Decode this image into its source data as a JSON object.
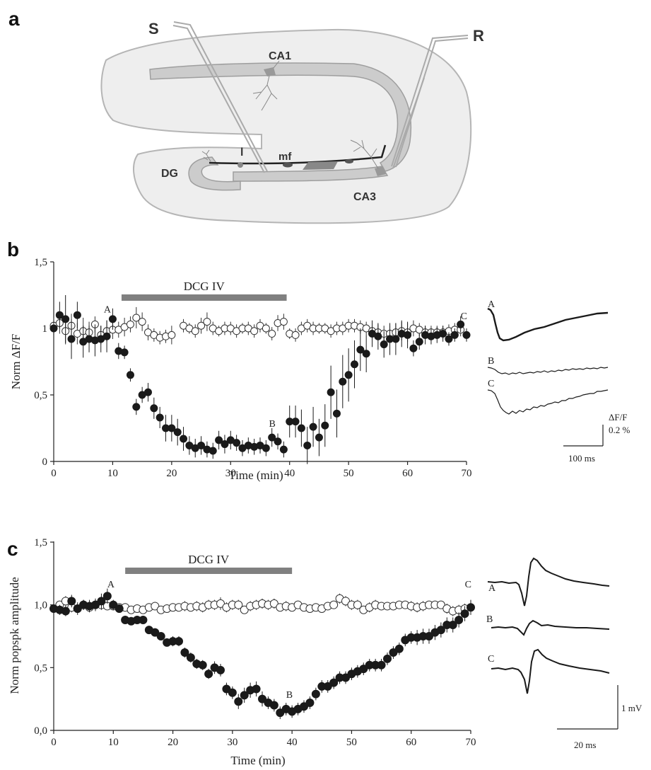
{
  "panel_labels": {
    "a": "a",
    "b": "b",
    "c": "c"
  },
  "schematic": {
    "stim_label": "S",
    "rec_label": "R",
    "ca1_label": "CA1",
    "ca3_label": "CA3",
    "dg_label": "DG",
    "l_label": "l",
    "mf_label": "mf"
  },
  "colors": {
    "open": "#333333",
    "filled": "#1a1a1a",
    "drug_bar": "#808080",
    "tissue": "#eeeeee",
    "layer": "#cccccc"
  },
  "chart_data": [
    {
      "panel": "b",
      "type": "scatter",
      "xlabel": "Time (min)",
      "ylabel": "Norm ΔF/F",
      "xlim": [
        0,
        70
      ],
      "ylim": [
        0,
        1.5
      ],
      "xticks": [
        "0",
        "10",
        "20",
        "30",
        "40",
        "50",
        "60",
        "70"
      ],
      "yticks": [
        "0",
        "0,5",
        "1",
        "1,5"
      ],
      "drug_bar": {
        "label": "DCG IV",
        "start": 11.5,
        "end": 39.5
      },
      "point_labels": [
        {
          "text": "A",
          "x": 8.5,
          "y": 1.12
        },
        {
          "text": "B",
          "x": 36.5,
          "y": 0.26
        },
        {
          "text": "C",
          "x": 69,
          "y": 1.07
        }
      ],
      "series": [
        {
          "marker": "open",
          "x": [
            0,
            1,
            2,
            3,
            4,
            5,
            6,
            7,
            8,
            9,
            10,
            11,
            12,
            13,
            14,
            15,
            16,
            17,
            18,
            19,
            20,
            22,
            23,
            24,
            25,
            26,
            27,
            28,
            29,
            30,
            31,
            32,
            33,
            34,
            35,
            36,
            37,
            38,
            39,
            40,
            41,
            42,
            43,
            44,
            45,
            46,
            47,
            48,
            49,
            50,
            51,
            52,
            53,
            54,
            55,
            56,
            57,
            58,
            59,
            60,
            61,
            62,
            63,
            64,
            65,
            66,
            67,
            68,
            69
          ],
          "y": [
            1.02,
            1.04,
            0.98,
            1.02,
            0.96,
            0.98,
            0.97,
            1.03,
            0.95,
            0.98,
            0.99,
            0.99,
            1.01,
            1.03,
            1.08,
            1.05,
            0.97,
            0.95,
            0.93,
            0.94,
            0.95,
            1.02,
            1.0,
            0.98,
            1.02,
            1.05,
            1.0,
            0.98,
            1.0,
            1.0,
            0.98,
            1.0,
            1.0,
            0.98,
            1.02,
            1.0,
            0.96,
            1.04,
            1.05,
            0.96,
            0.95,
            1.0,
            1.02,
            1.0,
            1.0,
            1.0,
            0.98,
            1.0,
            1.0,
            1.02,
            1.02,
            1.01,
            1.0,
            0.98,
            0.97,
            0.96,
            0.96,
            0.97,
            0.98,
            0.97,
            1.0,
            0.99,
            0.97,
            0.97,
            0.97,
            0.97,
            0.98,
            0.99,
            0.99
          ],
          "err": [
            0.06,
            0.08,
            0.1,
            0.09,
            0.08,
            0.1,
            0.08,
            0.06,
            0.07,
            0.08,
            0.07,
            0.06,
            0.07,
            0.06,
            0.08,
            0.07,
            0.06,
            0.05,
            0.05,
            0.05,
            0.07,
            0.05,
            0.04,
            0.05,
            0.06,
            0.07,
            0.05,
            0.04,
            0.05,
            0.05,
            0.05,
            0.04,
            0.05,
            0.05,
            0.05,
            0.04,
            0.05,
            0.06,
            0.06,
            0.04,
            0.05,
            0.05,
            0.05,
            0.05,
            0.04,
            0.04,
            0.05,
            0.05,
            0.05,
            0.05,
            0.05,
            0.05,
            0.05,
            0.06,
            0.06,
            0.06,
            0.06,
            0.07,
            0.07,
            0.07,
            0.06,
            0.05,
            0.05,
            0.05,
            0.05,
            0.05,
            0.05,
            0.05,
            0.05
          ]
        },
        {
          "marker": "filled",
          "x": [
            0,
            1,
            2,
            3,
            4,
            5,
            6,
            7,
            8,
            9,
            10,
            11,
            12,
            13,
            14,
            15,
            16,
            17,
            18,
            19,
            20,
            21,
            22,
            23,
            24,
            25,
            26,
            27,
            28,
            29,
            30,
            31,
            32,
            33,
            34,
            35,
            36,
            37,
            38,
            39,
            40,
            41,
            42,
            43,
            44,
            45,
            46,
            47,
            48,
            49,
            50,
            51,
            52,
            53,
            54,
            55,
            56,
            57,
            58,
            59,
            60,
            61,
            62,
            63,
            64,
            65,
            66,
            67,
            68,
            69,
            70
          ],
          "y": [
            1.0,
            1.1,
            1.07,
            0.92,
            1.1,
            0.9,
            0.92,
            0.91,
            0.92,
            0.94,
            1.07,
            0.83,
            0.82,
            0.65,
            0.41,
            0.5,
            0.52,
            0.4,
            0.33,
            0.25,
            0.25,
            0.22,
            0.17,
            0.12,
            0.1,
            0.12,
            0.09,
            0.08,
            0.16,
            0.13,
            0.16,
            0.14,
            0.1,
            0.12,
            0.11,
            0.12,
            0.1,
            0.18,
            0.15,
            0.09,
            0.3,
            0.3,
            0.25,
            0.12,
            0.26,
            0.18,
            0.27,
            0.52,
            0.36,
            0.6,
            0.65,
            0.73,
            0.84,
            0.81,
            0.96,
            0.94,
            0.88,
            0.92,
            0.92,
            0.96,
            0.95,
            0.85,
            0.9,
            0.95,
            0.94,
            0.95,
            0.96,
            0.92,
            0.95,
            1.03,
            0.95
          ],
          "err": [
            0.05,
            0.1,
            0.18,
            0.15,
            0.1,
            0.12,
            0.1,
            0.12,
            0.1,
            0.12,
            0.08,
            0.06,
            0.05,
            0.05,
            0.06,
            0.06,
            0.07,
            0.08,
            0.08,
            0.1,
            0.1,
            0.1,
            0.09,
            0.07,
            0.07,
            0.07,
            0.06,
            0.06,
            0.07,
            0.07,
            0.07,
            0.06,
            0.06,
            0.06,
            0.06,
            0.06,
            0.06,
            0.07,
            0.06,
            0.06,
            0.12,
            0.12,
            0.14,
            0.14,
            0.15,
            0.14,
            0.16,
            0.2,
            0.18,
            0.2,
            0.2,
            0.18,
            0.16,
            0.14,
            0.1,
            0.1,
            0.1,
            0.12,
            0.12,
            0.1,
            0.1,
            0.06,
            0.06,
            0.07,
            0.06,
            0.06,
            0.06,
            0.05,
            0.05,
            0.06,
            0.05
          ]
        }
      ],
      "traces": {
        "labels": [
          "A",
          "B",
          "C"
        ],
        "scale_y_label1": "ΔF/F",
        "scale_y_label2": "0.2 %",
        "scale_x_label": "100 ms"
      }
    },
    {
      "panel": "c",
      "type": "scatter",
      "xlabel": "Time (min)",
      "ylabel": "Norm popspk amplitude",
      "xlim": [
        0,
        70
      ],
      "ylim": [
        0,
        1.5
      ],
      "xticks": [
        "0",
        "10",
        "20",
        "30",
        "40",
        "50",
        "60",
        "70"
      ],
      "yticks": [
        "0,0",
        "0,5",
        "1,0",
        "1,5"
      ],
      "drug_bar": {
        "label": "DCG IV",
        "start": 12,
        "end": 40
      },
      "point_labels": [
        {
          "text": "A",
          "x": 9,
          "y": 1.14
        },
        {
          "text": "B",
          "x": 39,
          "y": 0.26
        },
        {
          "text": "C",
          "x": 69,
          "y": 1.14
        }
      ],
      "series": [
        {
          "marker": "open",
          "x": [
            1,
            2,
            3,
            4,
            5,
            6,
            7,
            8,
            9,
            10,
            11,
            12,
            13,
            14,
            15,
            16,
            17,
            18,
            19,
            20,
            21,
            22,
            23,
            24,
            25,
            26,
            27,
            28,
            29,
            30,
            31,
            32,
            33,
            34,
            35,
            36,
            37,
            38,
            39,
            40,
            41,
            42,
            43,
            44,
            45,
            46,
            47,
            48,
            49,
            50,
            51,
            52,
            53,
            54,
            55,
            56,
            57,
            58,
            59,
            60,
            61,
            62,
            63,
            64,
            65,
            66,
            67,
            68,
            69
          ],
          "y": [
            1.0,
            1.03,
            0.98,
            0.97,
            1.0,
            0.98,
            1.0,
            1.0,
            0.99,
            0.99,
            0.98,
            0.98,
            0.96,
            0.97,
            0.96,
            0.98,
            0.99,
            0.96,
            0.97,
            0.98,
            0.98,
            0.99,
            0.98,
            0.99,
            0.98,
            1.0,
            1.0,
            1.01,
            0.98,
            1.0,
            1.0,
            0.96,
            0.99,
            1.0,
            1.01,
            1.0,
            1.01,
            0.98,
            0.99,
            0.98,
            1.0,
            0.98,
            0.97,
            0.98,
            0.97,
            0.99,
            1.0,
            1.05,
            1.03,
            1.0,
            1.0,
            0.96,
            0.98,
            1.0,
            0.99,
            0.99,
            0.99,
            1.0,
            1.0,
            0.99,
            0.98,
            0.99,
            1.0,
            1.0,
            1.0,
            0.97,
            0.95,
            0.96,
            0.97
          ],
          "err": [
            0.03,
            0.04,
            0.04,
            0.03,
            0.04,
            0.03,
            0.04,
            0.04,
            0.03,
            0.03,
            0.03,
            0.03,
            0.03,
            0.03,
            0.03,
            0.03,
            0.03,
            0.03,
            0.03,
            0.03,
            0.03,
            0.04,
            0.03,
            0.04,
            0.04,
            0.04,
            0.04,
            0.05,
            0.04,
            0.04,
            0.04,
            0.03,
            0.04,
            0.04,
            0.04,
            0.04,
            0.04,
            0.03,
            0.04,
            0.03,
            0.03,
            0.03,
            0.03,
            0.03,
            0.03,
            0.03,
            0.03,
            0.04,
            0.04,
            0.04,
            0.04,
            0.03,
            0.04,
            0.04,
            0.03,
            0.03,
            0.03,
            0.03,
            0.03,
            0.04,
            0.04,
            0.04,
            0.03,
            0.03,
            0.03,
            0.04,
            0.04,
            0.04,
            0.04
          ]
        },
        {
          "marker": "filled",
          "x": [
            0,
            1,
            2,
            3,
            4,
            5,
            6,
            7,
            8,
            9,
            10,
            11,
            12,
            13,
            14,
            15,
            16,
            17,
            18,
            19,
            20,
            21,
            22,
            23,
            24,
            25,
            26,
            27,
            28,
            29,
            30,
            31,
            32,
            33,
            34,
            35,
            36,
            37,
            38,
            39,
            40,
            41,
            42,
            43,
            44,
            45,
            46,
            47,
            48,
            49,
            50,
            51,
            52,
            53,
            54,
            55,
            56,
            57,
            58,
            59,
            60,
            61,
            62,
            63,
            64,
            65,
            66,
            67,
            68,
            69,
            70
          ],
          "y": [
            0.97,
            0.96,
            0.95,
            1.03,
            0.97,
            1.0,
            0.99,
            1.0,
            1.03,
            1.07,
            1.0,
            0.97,
            0.88,
            0.87,
            0.88,
            0.88,
            0.8,
            0.78,
            0.75,
            0.7,
            0.71,
            0.71,
            0.62,
            0.58,
            0.53,
            0.52,
            0.45,
            0.5,
            0.48,
            0.33,
            0.3,
            0.23,
            0.28,
            0.32,
            0.33,
            0.25,
            0.22,
            0.2,
            0.14,
            0.17,
            0.15,
            0.17,
            0.19,
            0.22,
            0.29,
            0.35,
            0.35,
            0.38,
            0.42,
            0.42,
            0.45,
            0.47,
            0.49,
            0.52,
            0.52,
            0.52,
            0.57,
            0.62,
            0.65,
            0.72,
            0.74,
            0.74,
            0.75,
            0.75,
            0.78,
            0.8,
            0.84,
            0.84,
            0.88,
            0.93,
            0.98
          ],
          "err": [
            0.04,
            0.04,
            0.04,
            0.05,
            0.05,
            0.04,
            0.05,
            0.05,
            0.06,
            0.06,
            0.04,
            0.03,
            0.03,
            0.03,
            0.03,
            0.03,
            0.03,
            0.03,
            0.03,
            0.03,
            0.04,
            0.04,
            0.04,
            0.04,
            0.04,
            0.04,
            0.04,
            0.05,
            0.05,
            0.05,
            0.05,
            0.06,
            0.06,
            0.06,
            0.06,
            0.06,
            0.05,
            0.05,
            0.05,
            0.05,
            0.05,
            0.05,
            0.05,
            0.05,
            0.05,
            0.05,
            0.05,
            0.05,
            0.05,
            0.05,
            0.05,
            0.05,
            0.05,
            0.05,
            0.05,
            0.05,
            0.05,
            0.05,
            0.05,
            0.05,
            0.05,
            0.06,
            0.06,
            0.06,
            0.06,
            0.06,
            0.06,
            0.06,
            0.06,
            0.06,
            0.06
          ]
        }
      ],
      "traces": {
        "labels": [
          "A",
          "B",
          "C"
        ],
        "scale_y_label": "1 mV",
        "scale_x_label": "20 ms"
      }
    }
  ]
}
